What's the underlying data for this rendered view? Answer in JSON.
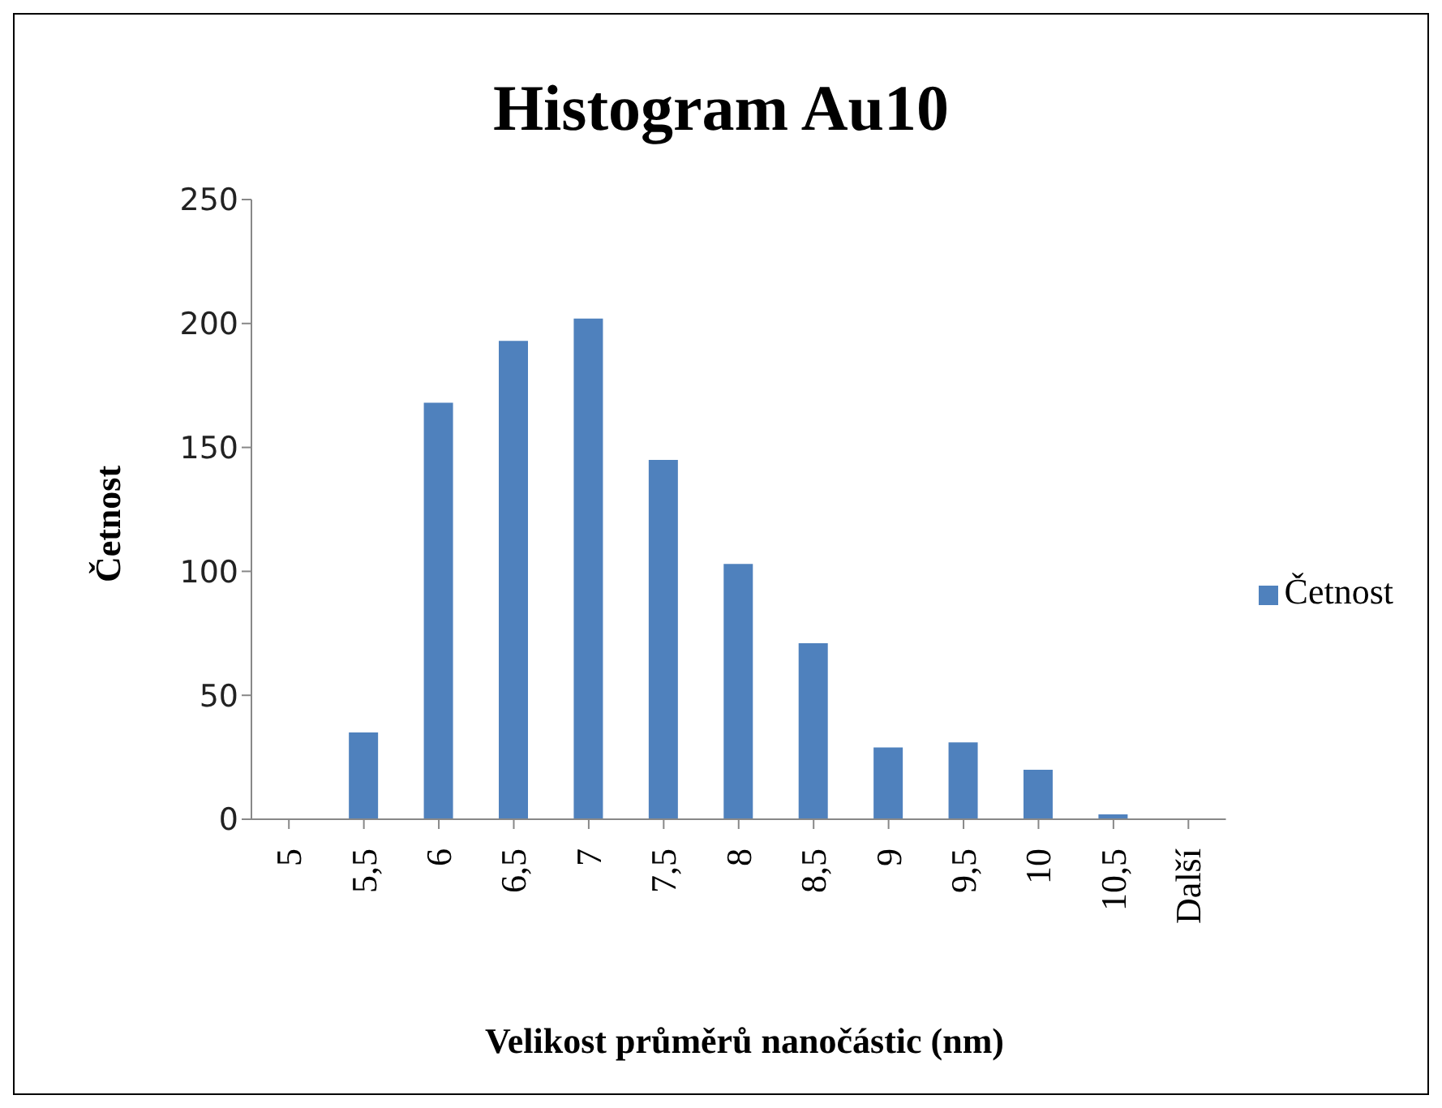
{
  "chart_data": {
    "type": "bar",
    "title": "Histogram Au10",
    "xlabel": "Velikost průměrů nanočástic (nm)",
    "ylabel": "Četnost",
    "categories": [
      "5",
      "5,5",
      "6",
      "6,5",
      "7",
      "7,5",
      "8",
      "8,5",
      "9",
      "9,5",
      "10",
      "10,5",
      "Další"
    ],
    "series": [
      {
        "name": "Četnost",
        "color": "#4f81bd",
        "values": [
          0,
          35,
          168,
          193,
          202,
          145,
          103,
          71,
          29,
          31,
          20,
          2,
          0
        ]
      }
    ],
    "ylim": [
      0,
      250
    ],
    "yticks": [
      0,
      50,
      100,
      150,
      200,
      250
    ],
    "grid": false,
    "legend": "right"
  }
}
